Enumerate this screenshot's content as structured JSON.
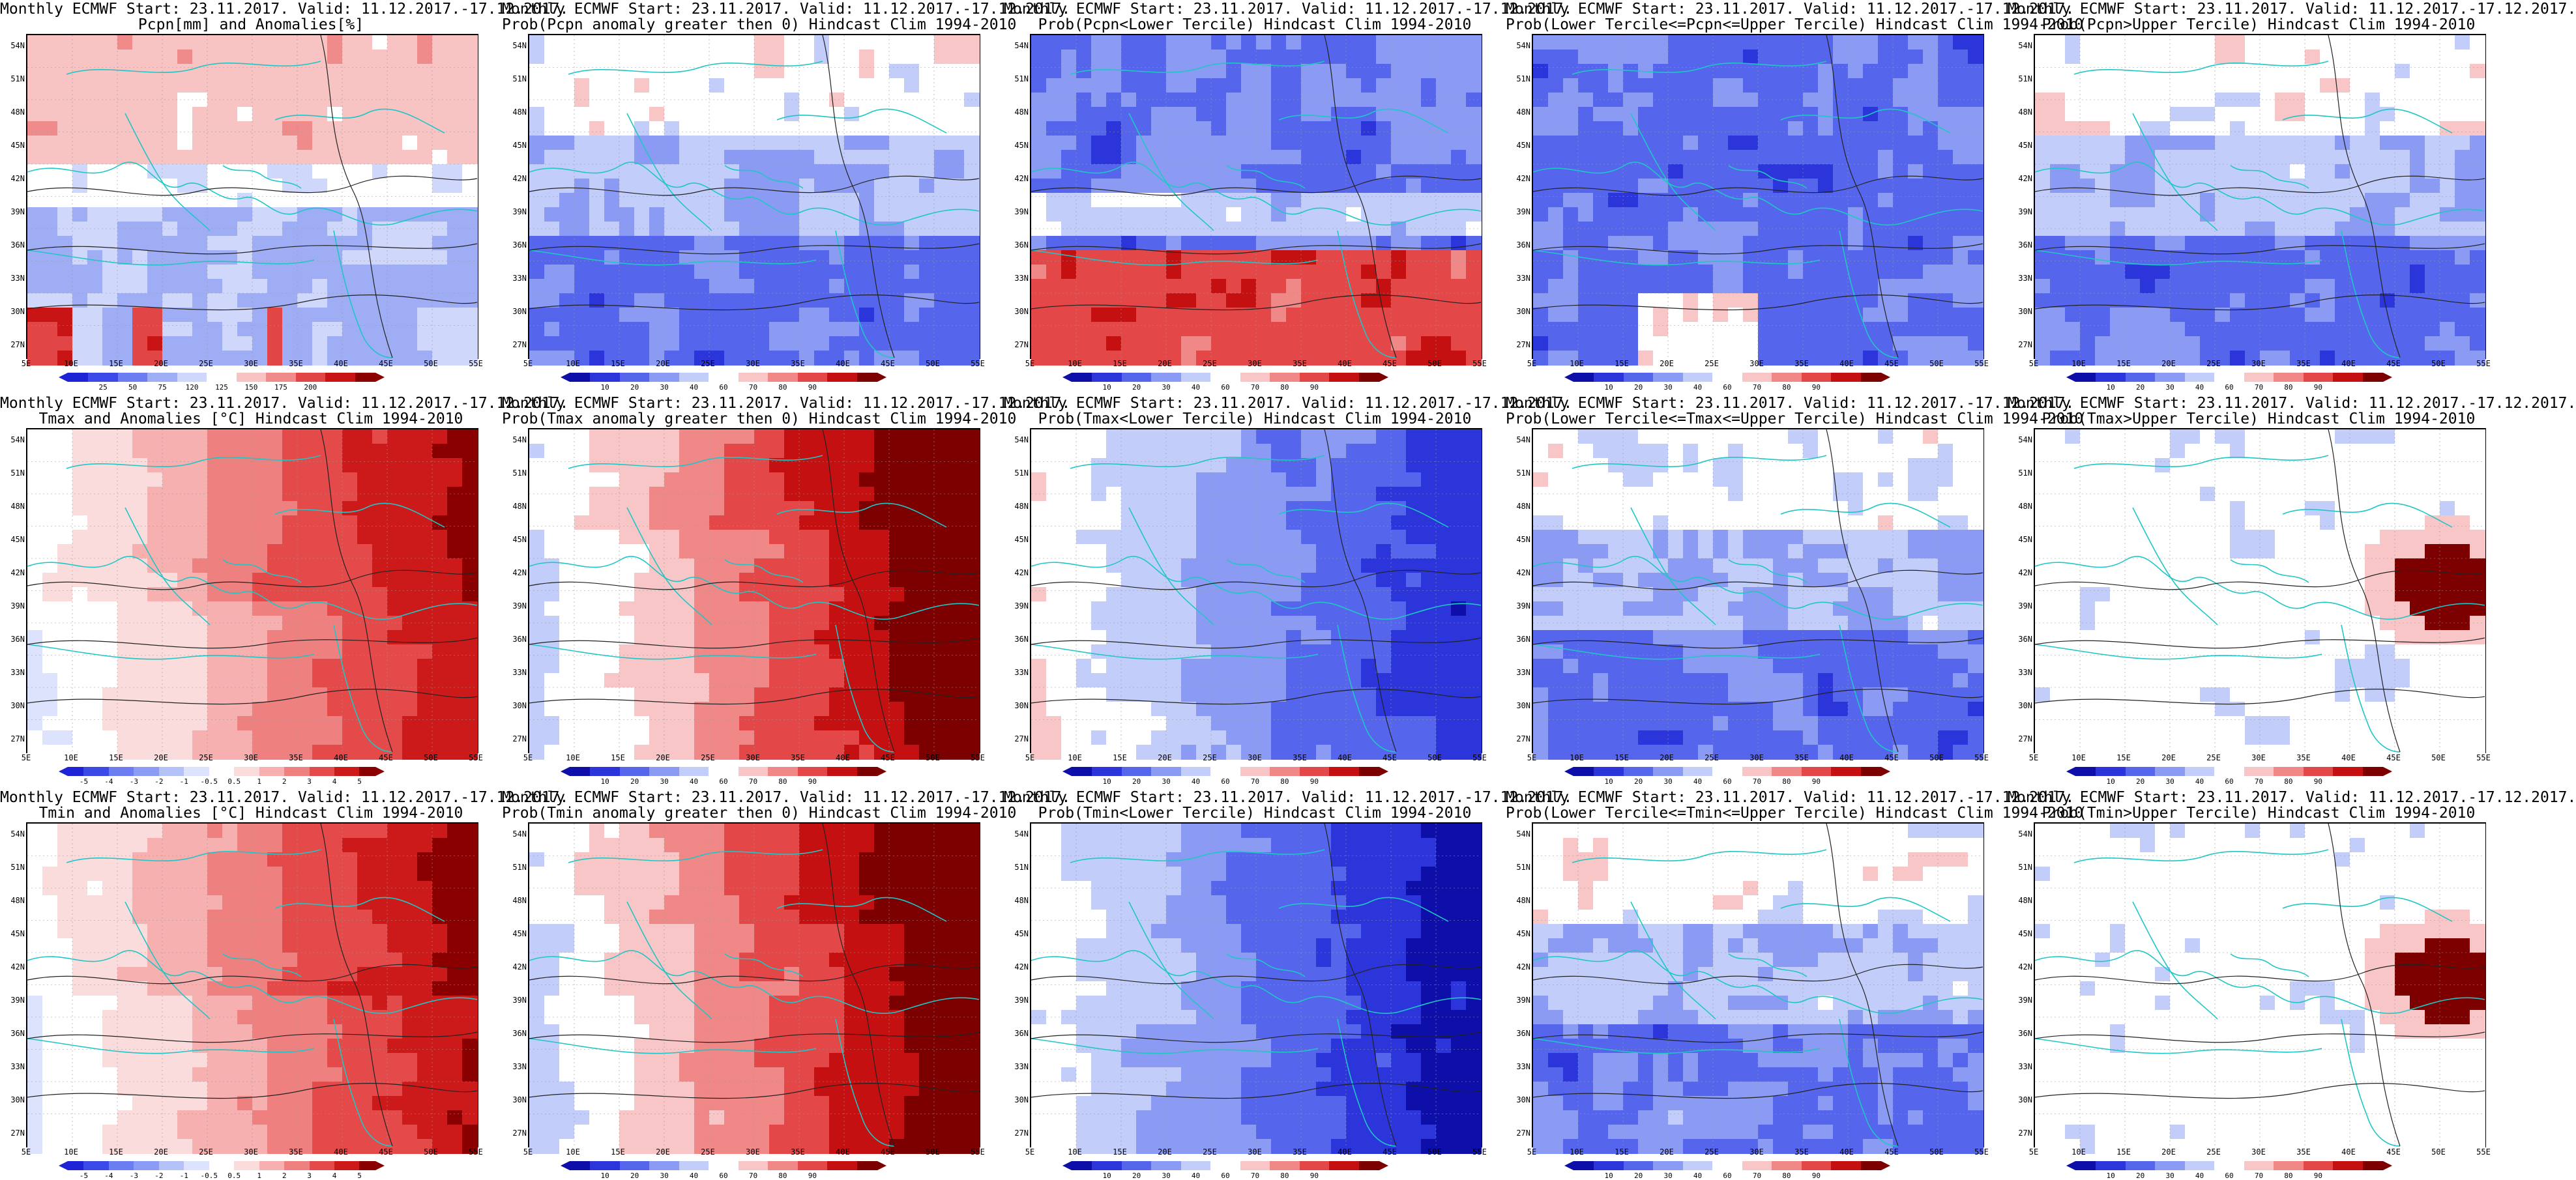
{
  "rows": [
    {
      "variable": "Pcpn",
      "panels": [
        {
          "title1": "Monthly ECMWF Start: 23.11.2017. Valid: 11.12.2017.-17.12.2017.",
          "title2": "Pcpn[mm] and Anomalies[%]",
          "colorbar_key": "pcpn_anom",
          "field": "pcpn_anom"
        },
        {
          "title1": "Monthly ECMWF Start: 23.11.2017. Valid: 11.12.2017.-17.12.2017.",
          "title2": "Prob(Pcpn anomaly greater then 0) Hindcast Clim 1994-2010",
          "colorbar_key": "prob",
          "field": "pcpn_pos"
        },
        {
          "title1": "Monthly ECMWF Start: 23.11.2017. Valid: 11.12.2017.-17.12.2017.",
          "title2": "Prob(Pcpn<Lower Tercile) Hindcast Clim 1994-2010",
          "colorbar_key": "prob",
          "field": "pcpn_low"
        },
        {
          "title1": "Monthly ECMWF Start: 23.11.2017. Valid: 11.12.2017.-17.12.2017.",
          "title2": "Prob(Lower Tercile<=Pcpn<=Upper Tercile) Hindcast Clim 1994-2010",
          "colorbar_key": "prob",
          "field": "pcpn_mid"
        },
        {
          "title1": "Monthly ECMWF Start: 23.11.2017. Valid: 11.12.2017.-17.12.2017.",
          "title2": "Prob(Pcpn>Upper Tercile) Hindcast Clim 1994-2010",
          "colorbar_key": "prob",
          "field": "pcpn_up"
        }
      ]
    },
    {
      "variable": "Tmax",
      "panels": [
        {
          "title1": "Monthly ECMWF Start: 23.11.2017. Valid: 11.12.2017.-17.12.2017.",
          "title2": "Tmax and Anomalies [°C] Hindcast Clim 1994-2010",
          "colorbar_key": "temp_anom",
          "field": "tmax_anom"
        },
        {
          "title1": "Monthly ECMWF Start: 23.11.2017. Valid: 11.12.2017.-17.12.2017.",
          "title2": "Prob(Tmax anomaly greater then 0) Hindcast Clim 1994-2010",
          "colorbar_key": "prob",
          "field": "tmax_pos"
        },
        {
          "title1": "Monthly ECMWF Start: 23.11.2017. Valid: 11.12.2017.-17.12.2017.",
          "title2": "Prob(Tmax<Lower Tercile) Hindcast Clim 1994-2010",
          "colorbar_key": "prob",
          "field": "tmax_low"
        },
        {
          "title1": "Monthly ECMWF Start: 23.11.2017. Valid: 11.12.2017.-17.12.2017.",
          "title2": "Prob(Lower Tercile<=Tmax<=Upper Tercile) Hindcast Clim 1994-2010",
          "colorbar_key": "prob",
          "field": "tmax_mid"
        },
        {
          "title1": "Monthly ECMWF Start: 23.11.2017. Valid: 11.12.2017.-17.12.2017.",
          "title2": "Prob(Tmax>Upper Tercile) Hindcast Clim 1994-2010",
          "colorbar_key": "prob",
          "field": "tmax_up"
        }
      ]
    },
    {
      "variable": "Tmin",
      "panels": [
        {
          "title1": "Monthly ECMWF Start: 23.11.2017. Valid: 11.12.2017.-17.12.2017.",
          "title2": "Tmin and Anomalies [°C] Hindcast Clim 1994-2010",
          "colorbar_key": "temp_anom",
          "field": "tmin_anom"
        },
        {
          "title1": "Monthly ECMWF Start: 23.11.2017. Valid: 11.12.2017.-17.12.2017.",
          "title2": "Prob(Tmin anomaly greater then 0) Hindcast Clim 1994-2010",
          "colorbar_key": "prob",
          "field": "tmin_pos"
        },
        {
          "title1": "Monthly ECMWF Start: 23.11.2017. Valid: 11.12.2017.-17.12.2017.",
          "title2": "Prob(Tmin<Lower Tercile) Hindcast Clim 1994-2010",
          "colorbar_key": "prob",
          "field": "tmin_low"
        },
        {
          "title1": "Monthly ECMWF Start: 23.11.2017. Valid: 11.12.2017.-17.12.2017.",
          "title2": "Prob(Lower Tercile<=Tmin<=Upper Tercile) Hindcast Clim 1994-2010",
          "colorbar_key": "prob",
          "field": "tmin_mid"
        },
        {
          "title1": "Monthly ECMWF Start: 23.11.2017. Valid: 11.12.2017.-17.12.2017.",
          "title2": "Prob(Tmin>Upper Tercile) Hindcast Clim 1994-2010",
          "colorbar_key": "prob",
          "field": "tmin_up"
        }
      ]
    }
  ],
  "map_axes": {
    "lat_labels": [
      "54N",
      "51N",
      "48N",
      "45N",
      "42N",
      "39N",
      "36N",
      "33N",
      "30N",
      "27N"
    ],
    "lon_labels": [
      "5E",
      "10E",
      "15E",
      "20E",
      "25E",
      "30E",
      "35E",
      "40E",
      "45E",
      "50E",
      "55E"
    ],
    "lat_range": [
      25.5,
      55.5
    ],
    "lon_range": [
      5,
      55
    ]
  },
  "colorbars": {
    "pcpn_anom": {
      "labels": [
        "25",
        "50",
        "75",
        "120",
        "125",
        "150",
        "175",
        "200"
      ],
      "colors": [
        "#1e24d6",
        "#3b4ae6",
        "#6b7df0",
        "#9fadf5",
        "#cfd7fa",
        "#ffffff",
        "#f7c3c3",
        "#f08b8b",
        "#e24545",
        "#c81414",
        "#8a0000"
      ]
    },
    "prob": {
      "labels": [
        "10",
        "20",
        "30",
        "40",
        "60",
        "70",
        "80",
        "90"
      ],
      "colors": [
        "#0d0fa8",
        "#2b35d9",
        "#5566ec",
        "#8b9bf3",
        "#c3cdfa",
        "#ffffff",
        "#f8c6c6",
        "#f08888",
        "#e34747",
        "#c41010",
        "#7c0000"
      ]
    },
    "temp_anom": {
      "labels": [
        "-5",
        "-4",
        "-3",
        "-2",
        "-1",
        "-0.5",
        "0.5",
        "1",
        "2",
        "3",
        "4",
        "5"
      ],
      "colors": [
        "#1e24d6",
        "#3b4ae6",
        "#6b7df0",
        "#8a9cf3",
        "#b5c2f8",
        "#dde3fc",
        "#ffffff",
        "#fbdcdc",
        "#f6b0b0",
        "#ef8080",
        "#e44a4a",
        "#cc1a1a",
        "#8a0000"
      ]
    }
  },
  "fields": {
    "pcpn_anom": "mixed_wet",
    "pcpn_pos": "blue_mixed",
    "pcpn_low": "blue_red_south",
    "pcpn_mid": "blue_deep",
    "pcpn_up": "blue_mixed",
    "tmax_anom": "red_east",
    "tmax_pos": "red_east_strong",
    "tmax_low": "blue_east",
    "tmax_mid": "blue_mixed",
    "tmax_up": "white_red_spot",
    "tmin_anom": "red_east",
    "tmin_pos": "red_east_strong",
    "tmin_low": "blue_east_strong",
    "tmin_mid": "blue_mixed",
    "tmin_up": "white_red_spot"
  }
}
